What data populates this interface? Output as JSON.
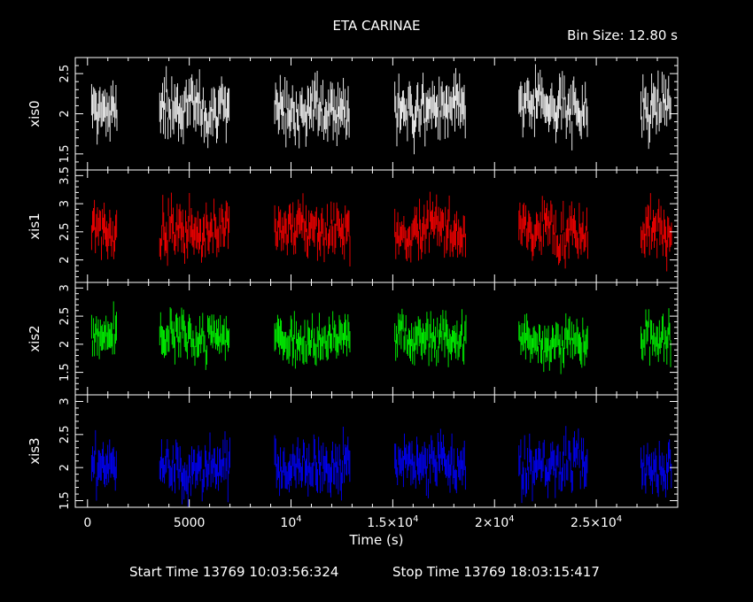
{
  "title": "ETA CARINAE",
  "bin_size": "Bin Size: 12.80 s",
  "footer": {
    "start_label": "Start Time 13769 10:03:56:324",
    "stop_label": "Stop Time 13769 18:03:15:417"
  },
  "chart_data": {
    "type": "scatter",
    "xlabel": "Time (s)",
    "xlim": [
      -600,
      29000
    ],
    "x_ticks": [
      {
        "value": 0,
        "label": "0"
      },
      {
        "value": 5000,
        "label": "5000"
      },
      {
        "value": 10000,
        "label": "10",
        "exp": "4"
      },
      {
        "value": 15000,
        "label": "1.5×10",
        "exp": "4"
      },
      {
        "value": 20000,
        "label": "2×10",
        "exp": "4"
      },
      {
        "value": 25000,
        "label": "2.5×10",
        "exp": "4"
      }
    ],
    "observation_windows": [
      [
        200,
        1450
      ],
      [
        3550,
        7000
      ],
      [
        9200,
        12900
      ],
      [
        15100,
        18600
      ],
      [
        21200,
        24600
      ],
      [
        27200,
        28700
      ]
    ],
    "bin_size_s": 12.8,
    "series": [
      {
        "name": "xis0",
        "color": "#ffffff",
        "ylim": [
          1.3,
          2.7
        ],
        "ticks": [
          1.5,
          2,
          2.5
        ],
        "mean": 2.05,
        "spread": 0.28
      },
      {
        "name": "xis1",
        "color": "#ff0000",
        "ylim": [
          1.6,
          3.6
        ],
        "ticks": [
          2,
          2.5,
          3,
          3.5
        ],
        "mean": 2.55,
        "spread": 0.35
      },
      {
        "name": "xis2",
        "color": "#00ff00",
        "ylim": [
          1.1,
          3.1
        ],
        "ticks": [
          1.5,
          2,
          2.5,
          3
        ],
        "mean": 2.1,
        "spread": 0.32
      },
      {
        "name": "xis3",
        "color": "#0000ff",
        "ylim": [
          1.4,
          3.1
        ],
        "ticks": [
          1.5,
          2,
          2.5,
          3
        ],
        "mean": 2.02,
        "spread": 0.3
      }
    ]
  }
}
